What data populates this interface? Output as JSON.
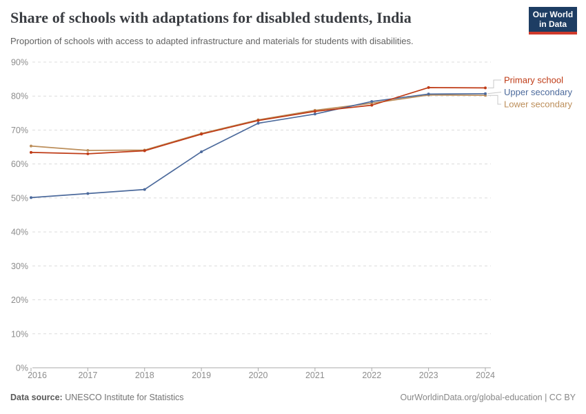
{
  "chart_data": {
    "type": "line",
    "title": "Share of schools with adaptations for disabled students, India",
    "subtitle": "Proportion of schools with access to adapted infrastructure and materials for students with disabilities.",
    "x": [
      2016,
      2017,
      2018,
      2019,
      2020,
      2021,
      2022,
      2023,
      2024
    ],
    "series": [
      {
        "name": "Primary school",
        "color": "#bf3b16",
        "values": [
          63.4,
          63.0,
          63.9,
          68.8,
          72.8,
          75.5,
          77.3,
          82.5,
          82.4
        ]
      },
      {
        "name": "Upper secondary",
        "color": "#4c6a9c",
        "values": [
          50.1,
          51.3,
          52.5,
          63.6,
          72.0,
          74.7,
          78.4,
          80.6,
          80.7
        ]
      },
      {
        "name": "Lower secondary",
        "color": "#bc8e5a",
        "values": [
          65.3,
          64.0,
          64.1,
          69.0,
          73.0,
          75.8,
          77.9,
          80.3,
          80.2
        ]
      }
    ],
    "xlabel": "",
    "ylabel": "",
    "ylim": [
      0,
      90
    ],
    "ytick_step": 10,
    "ytick_suffix": "%",
    "grid": "horizontal-dashed",
    "legend_position": "right-of-line-ends"
  },
  "header": {
    "logo_line1": "Our World",
    "logo_line2": "in Data"
  },
  "footer": {
    "source_label": "Data source:",
    "source_value": "UNESCO Institute for Statistics",
    "attribution": "OurWorldinData.org/global-education | CC BY"
  },
  "colors": {
    "grid": "#dcdcdc",
    "axis": "#a8a8a8",
    "tick_text": "#8d8d8d",
    "connector": "#c8c8c8",
    "logo_bg": "#1d3d63",
    "logo_bar": "#cf3a2c"
  }
}
